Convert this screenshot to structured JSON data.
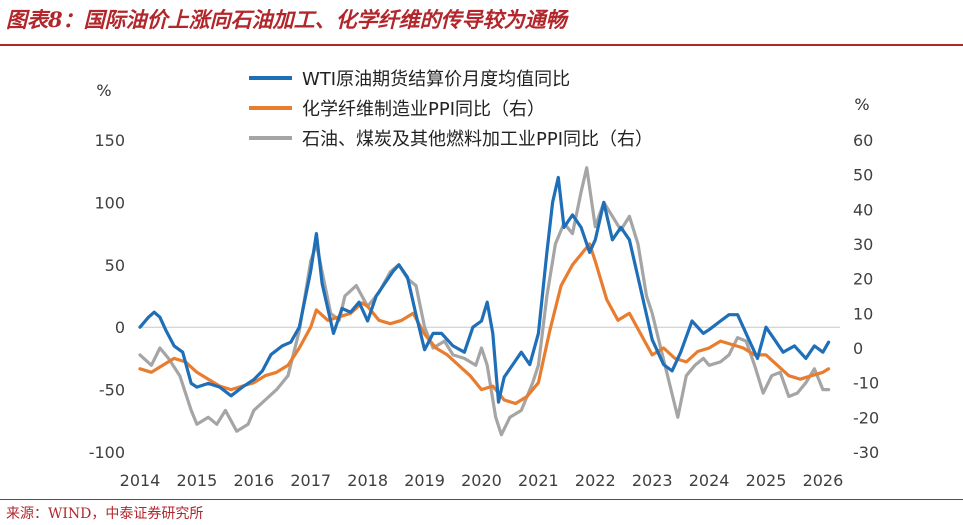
{
  "title": "图表8：国际油价上涨向石油加工、化学纤维的传导较为通畅",
  "source": "来源：WIND，中泰证券研究所",
  "chart_data": {
    "type": "line",
    "left_axis": {
      "label": "%",
      "ticks": [
        -100,
        -50,
        0,
        50,
        100,
        150
      ],
      "range": [
        -100,
        150
      ]
    },
    "right_axis": {
      "label": "%",
      "ticks": [
        -30,
        -20,
        -10,
        0,
        10,
        20,
        30,
        40,
        50,
        60
      ],
      "range": [
        -30,
        60
      ]
    },
    "x_axis": {
      "ticks": [
        "2014",
        "2015",
        "2016",
        "2017",
        "2018",
        "2019",
        "2020",
        "2021",
        "2022",
        "2023",
        "2024",
        "2025",
        "2026"
      ],
      "range": [
        2014,
        2026.3
      ]
    },
    "series": [
      {
        "name": "WTI原油期货结算价月度均值同比",
        "axis": "left",
        "color": "#1f6fb8",
        "points": [
          [
            2014.0,
            0
          ],
          [
            2014.15,
            8
          ],
          [
            2014.25,
            12
          ],
          [
            2014.35,
            8
          ],
          [
            2014.45,
            -2
          ],
          [
            2014.6,
            -15
          ],
          [
            2014.75,
            -20
          ],
          [
            2014.9,
            -45
          ],
          [
            2015.0,
            -48
          ],
          [
            2015.2,
            -45
          ],
          [
            2015.4,
            -48
          ],
          [
            2015.6,
            -55
          ],
          [
            2015.8,
            -48
          ],
          [
            2016.0,
            -42
          ],
          [
            2016.15,
            -35
          ],
          [
            2016.3,
            -22
          ],
          [
            2016.5,
            -15
          ],
          [
            2016.65,
            -12
          ],
          [
            2016.8,
            0
          ],
          [
            2017.0,
            45
          ],
          [
            2017.1,
            75
          ],
          [
            2017.2,
            35
          ],
          [
            2017.3,
            15
          ],
          [
            2017.4,
            -5
          ],
          [
            2017.55,
            15
          ],
          [
            2017.7,
            12
          ],
          [
            2017.85,
            20
          ],
          [
            2018.0,
            5
          ],
          [
            2018.15,
            25
          ],
          [
            2018.3,
            35
          ],
          [
            2018.45,
            45
          ],
          [
            2018.55,
            50
          ],
          [
            2018.7,
            40
          ],
          [
            2018.85,
            10
          ],
          [
            2019.0,
            -18
          ],
          [
            2019.15,
            -5
          ],
          [
            2019.3,
            -5
          ],
          [
            2019.5,
            -15
          ],
          [
            2019.7,
            -20
          ],
          [
            2019.85,
            0
          ],
          [
            2020.0,
            5
          ],
          [
            2020.1,
            20
          ],
          [
            2020.2,
            -5
          ],
          [
            2020.3,
            -60
          ],
          [
            2020.4,
            -40
          ],
          [
            2020.55,
            -30
          ],
          [
            2020.7,
            -20
          ],
          [
            2020.85,
            -30
          ],
          [
            2021.0,
            -5
          ],
          [
            2021.15,
            60
          ],
          [
            2021.25,
            100
          ],
          [
            2021.35,
            120
          ],
          [
            2021.45,
            80
          ],
          [
            2021.6,
            90
          ],
          [
            2021.75,
            80
          ],
          [
            2021.9,
            60
          ],
          [
            2022.0,
            70
          ],
          [
            2022.15,
            100
          ],
          [
            2022.3,
            70
          ],
          [
            2022.45,
            80
          ],
          [
            2022.6,
            70
          ],
          [
            2022.75,
            40
          ],
          [
            2022.9,
            10
          ],
          [
            2023.0,
            -10
          ],
          [
            2023.2,
            -30
          ],
          [
            2023.35,
            -35
          ],
          [
            2023.5,
            -20
          ],
          [
            2023.7,
            5
          ],
          [
            2023.9,
            -5
          ],
          [
            2024.0,
            -2
          ],
          [
            2024.2,
            5
          ],
          [
            2024.35,
            10
          ],
          [
            2024.5,
            10
          ],
          [
            2024.7,
            -10
          ],
          [
            2024.85,
            -25
          ],
          [
            2025.0,
            0
          ],
          [
            2025.15,
            -10
          ],
          [
            2025.3,
            -20
          ],
          [
            2025.5,
            -15
          ],
          [
            2025.7,
            -25
          ],
          [
            2025.85,
            -15
          ],
          [
            2026.0,
            -20
          ],
          [
            2026.1,
            -12
          ]
        ]
      },
      {
        "name": "化学纤维制造业PPI同比（右）",
        "axis": "right",
        "color": "#e97d2f",
        "points": [
          [
            2014.0,
            -6
          ],
          [
            2014.2,
            -7
          ],
          [
            2014.4,
            -5
          ],
          [
            2014.6,
            -3
          ],
          [
            2014.8,
            -4
          ],
          [
            2015.0,
            -7
          ],
          [
            2015.2,
            -9
          ],
          [
            2015.4,
            -11
          ],
          [
            2015.6,
            -12
          ],
          [
            2015.8,
            -11
          ],
          [
            2016.0,
            -10
          ],
          [
            2016.2,
            -8
          ],
          [
            2016.4,
            -7
          ],
          [
            2016.6,
            -5
          ],
          [
            2016.8,
            0
          ],
          [
            2017.0,
            6
          ],
          [
            2017.1,
            11
          ],
          [
            2017.3,
            8
          ],
          [
            2017.5,
            9
          ],
          [
            2017.7,
            10
          ],
          [
            2017.9,
            13
          ],
          [
            2018.0,
            12
          ],
          [
            2018.2,
            8
          ],
          [
            2018.4,
            7
          ],
          [
            2018.6,
            8
          ],
          [
            2018.8,
            10
          ],
          [
            2019.0,
            4
          ],
          [
            2019.2,
            0
          ],
          [
            2019.4,
            -2
          ],
          [
            2019.6,
            -5
          ],
          [
            2019.8,
            -8
          ],
          [
            2020.0,
            -12
          ],
          [
            2020.2,
            -11
          ],
          [
            2020.4,
            -15
          ],
          [
            2020.6,
            -16
          ],
          [
            2020.8,
            -14
          ],
          [
            2021.0,
            -10
          ],
          [
            2021.2,
            5
          ],
          [
            2021.4,
            18
          ],
          [
            2021.6,
            24
          ],
          [
            2021.8,
            28
          ],
          [
            2021.9,
            30
          ],
          [
            2022.0,
            25
          ],
          [
            2022.2,
            14
          ],
          [
            2022.4,
            8
          ],
          [
            2022.6,
            10
          ],
          [
            2022.8,
            4
          ],
          [
            2023.0,
            -2
          ],
          [
            2023.2,
            0
          ],
          [
            2023.4,
            -3
          ],
          [
            2023.6,
            -4
          ],
          [
            2023.8,
            -1
          ],
          [
            2024.0,
            0
          ],
          [
            2024.2,
            2
          ],
          [
            2024.4,
            1
          ],
          [
            2024.6,
            0
          ],
          [
            2024.8,
            -2
          ],
          [
            2025.0,
            -2
          ],
          [
            2025.2,
            -5
          ],
          [
            2025.4,
            -8
          ],
          [
            2025.6,
            -9
          ],
          [
            2025.8,
            -8
          ],
          [
            2026.0,
            -7
          ],
          [
            2026.1,
            -6
          ]
        ]
      },
      {
        "name": "石油、煤炭及其他燃料加工业PPI同比（右）",
        "axis": "right",
        "color": "#a5a5a5",
        "points": [
          [
            2014.0,
            -2
          ],
          [
            2014.2,
            -5
          ],
          [
            2014.35,
            0
          ],
          [
            2014.5,
            -3
          ],
          [
            2014.7,
            -8
          ],
          [
            2014.9,
            -18
          ],
          [
            2015.0,
            -22
          ],
          [
            2015.2,
            -20
          ],
          [
            2015.35,
            -22
          ],
          [
            2015.5,
            -18
          ],
          [
            2015.7,
            -24
          ],
          [
            2015.9,
            -22
          ],
          [
            2016.0,
            -18
          ],
          [
            2016.2,
            -15
          ],
          [
            2016.4,
            -12
          ],
          [
            2016.6,
            -8
          ],
          [
            2016.8,
            5
          ],
          [
            2017.0,
            25
          ],
          [
            2017.1,
            30
          ],
          [
            2017.2,
            22
          ],
          [
            2017.35,
            10
          ],
          [
            2017.5,
            8
          ],
          [
            2017.6,
            15
          ],
          [
            2017.8,
            18
          ],
          [
            2018.0,
            12
          ],
          [
            2018.2,
            16
          ],
          [
            2018.4,
            22
          ],
          [
            2018.55,
            24
          ],
          [
            2018.7,
            20
          ],
          [
            2018.85,
            18
          ],
          [
            2019.0,
            6
          ],
          [
            2019.15,
            0
          ],
          [
            2019.35,
            2
          ],
          [
            2019.5,
            -2
          ],
          [
            2019.7,
            -3
          ],
          [
            2019.9,
            -5
          ],
          [
            2020.0,
            0
          ],
          [
            2020.1,
            -5
          ],
          [
            2020.25,
            -20
          ],
          [
            2020.35,
            -25
          ],
          [
            2020.5,
            -20
          ],
          [
            2020.7,
            -18
          ],
          [
            2020.9,
            -10
          ],
          [
            2021.0,
            -5
          ],
          [
            2021.15,
            15
          ],
          [
            2021.3,
            30
          ],
          [
            2021.45,
            36
          ],
          [
            2021.6,
            33
          ],
          [
            2021.75,
            45
          ],
          [
            2021.85,
            52
          ],
          [
            2022.0,
            35
          ],
          [
            2022.15,
            42
          ],
          [
            2022.3,
            38
          ],
          [
            2022.45,
            34
          ],
          [
            2022.6,
            38
          ],
          [
            2022.75,
            30
          ],
          [
            2022.9,
            15
          ],
          [
            2023.0,
            10
          ],
          [
            2023.15,
            0
          ],
          [
            2023.3,
            -10
          ],
          [
            2023.45,
            -20
          ],
          [
            2023.6,
            -8
          ],
          [
            2023.75,
            -5
          ],
          [
            2023.9,
            -3
          ],
          [
            2024.0,
            -5
          ],
          [
            2024.2,
            -4
          ],
          [
            2024.35,
            -2
          ],
          [
            2024.5,
            3
          ],
          [
            2024.65,
            2
          ],
          [
            2024.8,
            -5
          ],
          [
            2024.95,
            -13
          ],
          [
            2025.1,
            -8
          ],
          [
            2025.25,
            -7
          ],
          [
            2025.4,
            -14
          ],
          [
            2025.55,
            -13
          ],
          [
            2025.7,
            -10
          ],
          [
            2025.85,
            -6
          ],
          [
            2026.0,
            -12
          ],
          [
            2026.1,
            -12
          ]
        ]
      }
    ]
  }
}
